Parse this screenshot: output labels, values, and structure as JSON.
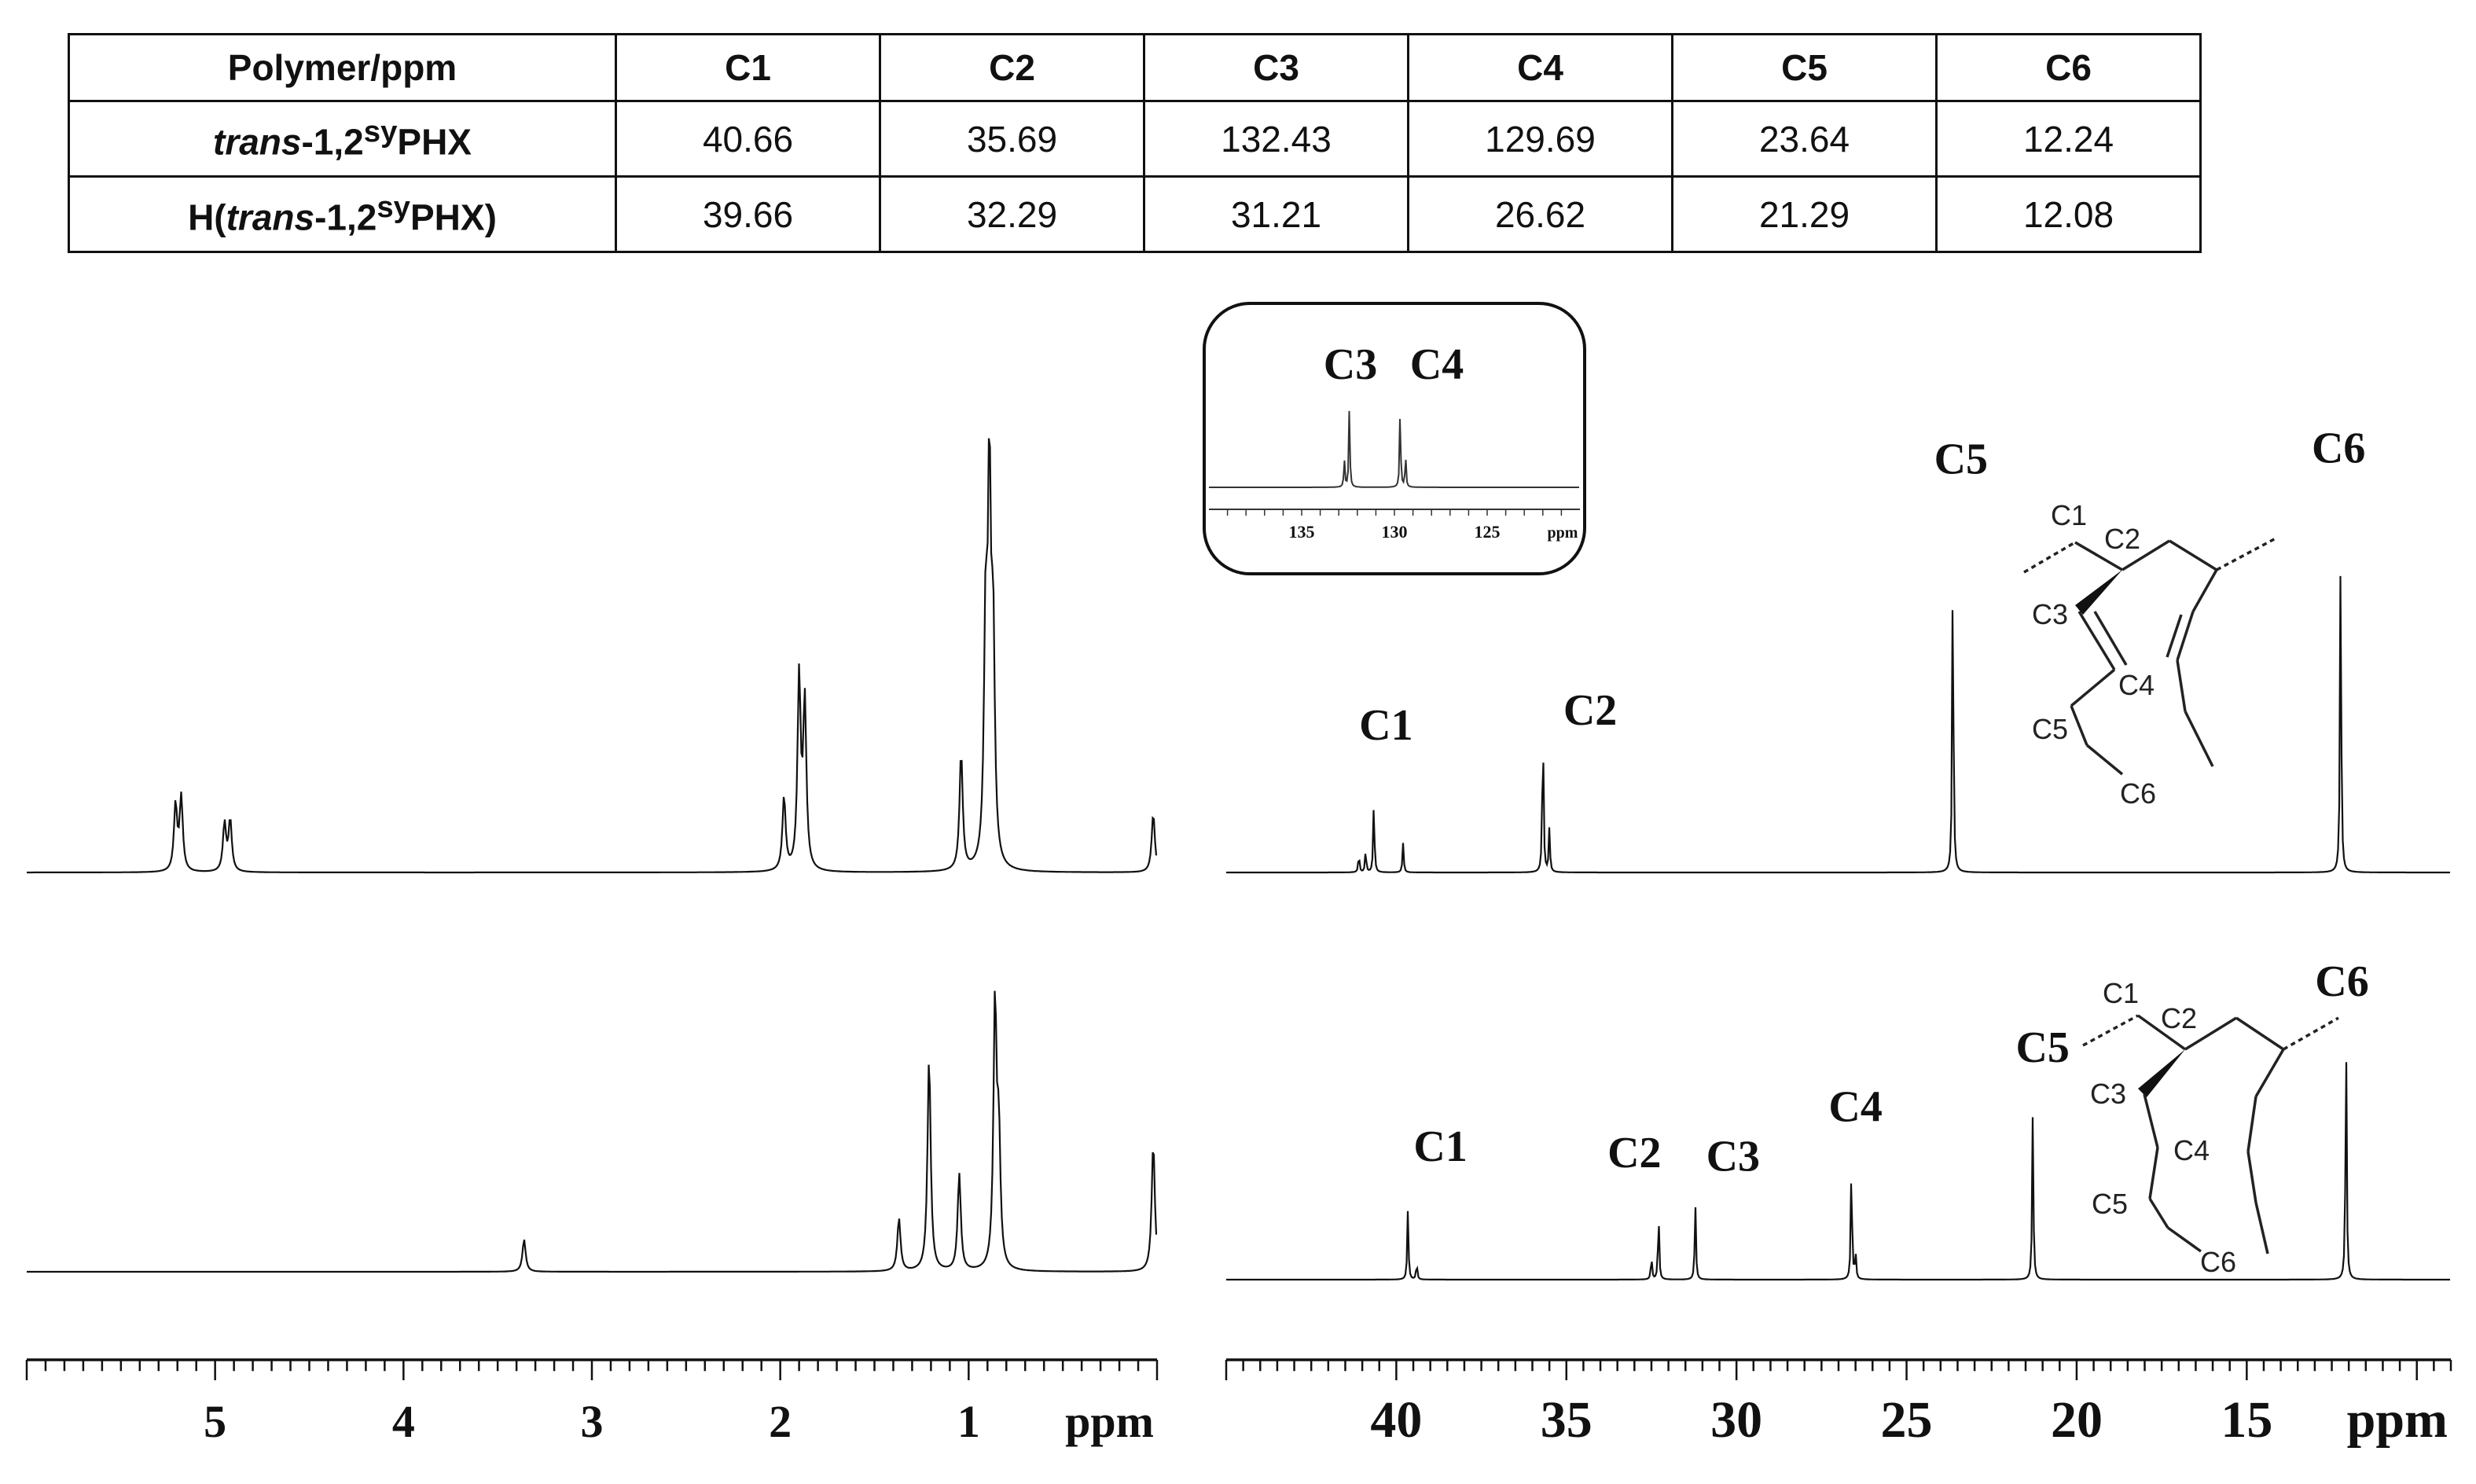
{
  "table": {
    "header": [
      "Polymer/ppm",
      "C1",
      "C2",
      "C3",
      "C4",
      "C5",
      "C6"
    ],
    "rows": [
      {
        "name_em": "trans",
        "name_rest": "-1,2",
        "name_sup": "sy",
        "name_tail": "PHX",
        "name_pre": "",
        "name_close": "",
        "values": [
          "40.66",
          "35.69",
          "132.43",
          "129.69",
          "23.64",
          "12.24"
        ]
      },
      {
        "name_em": "trans",
        "name_rest": "-1,2",
        "name_sup": "sy",
        "name_tail": "PHX",
        "name_pre": "H(",
        "name_close": ")",
        "values": [
          "39.66",
          "32.29",
          "31.21",
          "26.62",
          "21.29",
          "12.08"
        ]
      }
    ]
  },
  "chart_data": [
    {
      "type": "line",
      "panel": "1H NMR",
      "xlabel": "ppm",
      "xlim": [
        6.0,
        0.0
      ],
      "x_reversed": true,
      "ticks": [
        "5",
        "4",
        "3",
        "2",
        "1"
      ],
      "tick_values": [
        5,
        4,
        3,
        2,
        1
      ],
      "series": [
        {
          "peaks": [
            {
              "x": 5.21,
              "h": 0.18
            },
            {
              "x": 5.18,
              "h": 0.2
            },
            {
              "x": 4.95,
              "h": 0.13
            },
            {
              "x": 4.92,
              "h": 0.14
            },
            {
              "x": 1.98,
              "h": 0.2
            },
            {
              "x": 1.9,
              "h": 0.52
            },
            {
              "x": 1.87,
              "h": 0.45
            },
            {
              "x": 1.04,
              "h": 0.32
            },
            {
              "x": 0.91,
              "h": 0.62
            },
            {
              "x": 0.89,
              "h": 1.0
            },
            {
              "x": 0.87,
              "h": 0.58
            },
            {
              "x": 0.02,
              "h": 0.16
            }
          ]
        },
        {
          "peaks": [
            {
              "x": 3.36,
              "h": 0.11
            },
            {
              "x": 1.37,
              "h": 0.18
            },
            {
              "x": 1.21,
              "h": 0.73
            },
            {
              "x": 1.05,
              "h": 0.33
            },
            {
              "x": 0.86,
              "h": 0.9
            },
            {
              "x": 0.84,
              "h": 0.42
            },
            {
              "x": 0.02,
              "h": 0.44
            }
          ]
        }
      ]
    },
    {
      "type": "line",
      "panel": "13C NMR",
      "xlabel": "ppm",
      "xlim": [
        45.0,
        9.0
      ],
      "x_reversed": true,
      "ticks": [
        "40",
        "35",
        "30",
        "25",
        "20",
        "15"
      ],
      "tick_values": [
        40,
        35,
        30,
        25,
        20,
        15
      ],
      "series": [
        {
          "peaks": [
            {
              "x": 41.1,
              "h": 0.05
            },
            {
              "x": 40.9,
              "h": 0.06
            },
            {
              "x": 40.66,
              "h": 0.19
            },
            {
              "x": 39.8,
              "h": 0.08
            },
            {
              "x": 35.69,
              "h": 0.42
            },
            {
              "x": 35.5,
              "h": 0.12
            },
            {
              "x": 23.64,
              "h": 0.86
            },
            {
              "x": 12.24,
              "h": 0.88
            }
          ],
          "labels": [
            {
              "text": "C1",
              "x": 40.3,
              "h": 0.36
            },
            {
              "text": "C2",
              "x": 34.3,
              "h": 0.4
            },
            {
              "text": "C5",
              "x": 23.4,
              "h": 1.08
            },
            {
              "text": "C6",
              "x": 12.3,
              "h": 1.11
            }
          ]
        },
        {
          "peaks": [
            {
              "x": 39.66,
              "h": 0.21
            },
            {
              "x": 39.4,
              "h": 0.05
            },
            {
              "x": 32.5,
              "h": 0.07
            },
            {
              "x": 32.29,
              "h": 0.2
            },
            {
              "x": 31.21,
              "h": 0.23
            },
            {
              "x": 26.62,
              "h": 0.36
            },
            {
              "x": 26.5,
              "h": 0.08
            },
            {
              "x": 21.29,
              "h": 0.5
            },
            {
              "x": 12.08,
              "h": 0.73
            }
          ],
          "labels": [
            {
              "text": "C1",
              "x": 38.7,
              "h": 0.36
            },
            {
              "text": "C2",
              "x": 33.0,
              "h": 0.34
            },
            {
              "text": "C3",
              "x": 30.1,
              "h": 0.33
            },
            {
              "text": "C4",
              "x": 26.5,
              "h": 0.48
            },
            {
              "text": "C5",
              "x": 21.0,
              "h": 0.66
            },
            {
              "text": "C6",
              "x": 12.2,
              "h": 0.86
            }
          ]
        }
      ]
    },
    {
      "type": "line",
      "panel": "inset",
      "title_labels": [
        "C3",
        "C4"
      ],
      "xlabel": "ppm",
      "xlim": [
        140,
        120
      ],
      "ticks": [
        "135",
        "130",
        "125"
      ],
      "tick_values": [
        135,
        130,
        125
      ],
      "peaks": [
        {
          "x": 132.7,
          "h": 0.35
        },
        {
          "x": 132.43,
          "h": 1.0
        },
        {
          "x": 129.69,
          "h": 1.0
        },
        {
          "x": 129.4,
          "h": 0.4
        }
      ]
    }
  ],
  "structure_labels": {
    "top": [
      "C1",
      "C2",
      "C3",
      "C4",
      "C5",
      "C6"
    ],
    "bottom": [
      "C1",
      "C2",
      "C3",
      "C4",
      "C5",
      "C6"
    ]
  }
}
